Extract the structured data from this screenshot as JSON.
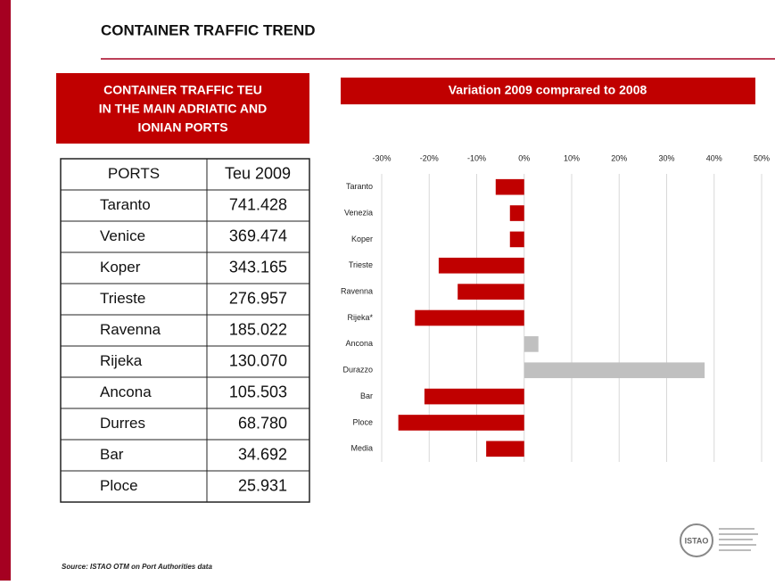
{
  "title": "CONTAINER TRAFFIC TREND",
  "box_title": [
    "CONTAINER TRAFFIC TEU",
    "IN THE MAIN ADRIATIC AND",
    "IONIAN PORTS"
  ],
  "table": {
    "header": [
      "PORTS",
      "Teu 2009"
    ],
    "rows": [
      [
        "Taranto",
        "741.428"
      ],
      [
        "Venice",
        "369.474"
      ],
      [
        "Koper",
        "343.165"
      ],
      [
        "Trieste",
        "276.957"
      ],
      [
        "Ravenna",
        "185.022"
      ],
      [
        "Rijeka",
        "130.070"
      ],
      [
        "Ancona",
        "105.503"
      ],
      [
        "Durres",
        "68.780"
      ],
      [
        "Bar",
        "34.692"
      ],
      [
        "Ploce",
        "25.931"
      ]
    ]
  },
  "source": "Source: ISTAO OTM on Port Authorities data",
  "logo": "ISTAO",
  "chart_data": {
    "type": "hbar",
    "title": "Variation 2009 comprared to 2008",
    "categories": [
      "Taranto",
      "Venezia",
      "Koper",
      "Trieste",
      "Ravenna",
      "Rijeka*",
      "Ancona",
      "Durazzo",
      "Bar",
      "Ploce",
      "Media"
    ],
    "values": [
      -6,
      -3,
      -3,
      -18,
      -14,
      -23,
      3,
      38,
      -21,
      -26.5,
      -8
    ],
    "colors": [
      "#c00000",
      "#c00000",
      "#c00000",
      "#c00000",
      "#c00000",
      "#c00000",
      "#c0c0c0",
      "#c0c0c0",
      "#c00000",
      "#c00000",
      "#c00000"
    ],
    "xlim": [
      -30,
      50
    ],
    "xticks": [
      {
        "value": -30,
        "label": "-30%"
      },
      {
        "value": -20,
        "label": "-20%"
      },
      {
        "value": -10,
        "label": "-10%"
      },
      {
        "value": 0,
        "label": "0%"
      },
      {
        "value": 10,
        "label": "10%"
      },
      {
        "value": 20,
        "label": "20%"
      },
      {
        "value": 30,
        "label": "30%"
      },
      {
        "value": 40,
        "label": "40%"
      },
      {
        "value": 50,
        "label": "50%"
      }
    ],
    "grid": true
  }
}
